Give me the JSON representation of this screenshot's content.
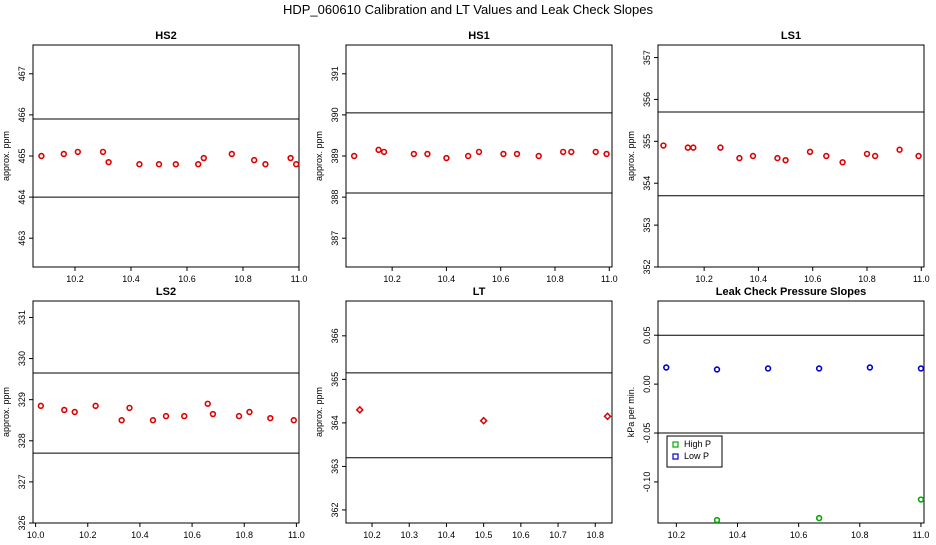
{
  "page_title": "HDP_060610  Calibration and LT Values and Leak Check Slopes",
  "chart_data": [
    {
      "type": "scatter",
      "title": "HS2",
      "ylabel": "approx. ppm",
      "xlim": [
        10.05,
        11.0
      ],
      "ylim": [
        462.3,
        467.7
      ],
      "xticks": [
        "10.2",
        "10.4",
        "10.6",
        "10.8",
        "11.0"
      ],
      "yticks": [
        "463",
        "464",
        "465",
        "466",
        "467"
      ],
      "hlines": [
        465.9,
        464.0
      ],
      "marker": "circle",
      "series": [
        {
          "color": "#dd0000",
          "x": [
            10.08,
            10.16,
            10.21,
            10.3,
            10.32,
            10.43,
            10.5,
            10.56,
            10.64,
            10.66,
            10.76,
            10.84,
            10.88,
            10.97,
            10.99
          ],
          "y": [
            465.0,
            465.05,
            465.1,
            465.1,
            464.85,
            464.8,
            464.8,
            464.8,
            464.8,
            464.95,
            465.05,
            464.9,
            464.8,
            464.95,
            464.8
          ]
        }
      ]
    },
    {
      "type": "scatter",
      "title": "HS1",
      "ylabel": "approx. ppm",
      "xlim": [
        10.03,
        11.01
      ],
      "ylim": [
        386.3,
        391.7
      ],
      "xticks": [
        "10.2",
        "10.4",
        "10.6",
        "10.8",
        "11.0"
      ],
      "yticks": [
        "387",
        "388",
        "389",
        "390",
        "391"
      ],
      "hlines": [
        390.05,
        388.1
      ],
      "marker": "circle",
      "series": [
        {
          "color": "#dd0000",
          "x": [
            10.06,
            10.15,
            10.17,
            10.28,
            10.33,
            10.4,
            10.48,
            10.52,
            10.61,
            10.66,
            10.74,
            10.83,
            10.86,
            10.95,
            10.99
          ],
          "y": [
            389.0,
            389.15,
            389.1,
            389.05,
            389.05,
            388.95,
            389.0,
            389.1,
            389.05,
            389.05,
            389.0,
            389.1,
            389.1,
            389.1,
            389.05
          ]
        }
      ]
    },
    {
      "type": "scatter",
      "title": "LS1",
      "ylabel": "approx. ppm",
      "xlim": [
        10.03,
        11.01
      ],
      "ylim": [
        352.0,
        357.3
      ],
      "xticks": [
        "10.2",
        "10.4",
        "10.6",
        "10.8",
        "11.0"
      ],
      "yticks": [
        "352",
        "353",
        "354",
        "355",
        "356",
        "357"
      ],
      "hlines": [
        355.7,
        353.7
      ],
      "marker": "circle",
      "series": [
        {
          "color": "#dd0000",
          "x": [
            10.05,
            10.14,
            10.16,
            10.26,
            10.33,
            10.38,
            10.47,
            10.5,
            10.59,
            10.65,
            10.71,
            10.8,
            10.83,
            10.92,
            10.99
          ],
          "y": [
            354.9,
            354.85,
            354.85,
            354.85,
            354.6,
            354.65,
            354.6,
            354.55,
            354.75,
            354.65,
            354.5,
            354.7,
            354.65,
            354.8,
            354.65
          ]
        }
      ]
    },
    {
      "type": "scatter",
      "title": "LS2",
      "ylabel": "approx. ppm",
      "xlim": [
        9.99,
        11.01
      ],
      "ylim": [
        326.0,
        331.4
      ],
      "xticks": [
        "10.0",
        "10.2",
        "10.4",
        "10.6",
        "10.8",
        "11.0"
      ],
      "yticks": [
        "326",
        "327",
        "328",
        "329",
        "330",
        "331"
      ],
      "hlines": [
        329.65,
        327.7
      ],
      "marker": "circle",
      "series": [
        {
          "color": "#dd0000",
          "x": [
            10.02,
            10.11,
            10.15,
            10.23,
            10.33,
            10.36,
            10.45,
            10.5,
            10.57,
            10.66,
            10.68,
            10.78,
            10.82,
            10.9,
            10.99
          ],
          "y": [
            328.85,
            328.75,
            328.7,
            328.85,
            328.5,
            328.8,
            328.5,
            328.6,
            328.6,
            328.9,
            328.65,
            328.6,
            328.7,
            328.55,
            328.5
          ]
        }
      ]
    },
    {
      "type": "scatter",
      "title": "LT",
      "ylabel": "approx. ppm",
      "xlim": [
        10.13,
        10.845
      ],
      "ylim": [
        361.7,
        366.8
      ],
      "xticks": [
        "10.2",
        "10.3",
        "10.4",
        "10.5",
        "10.6",
        "10.7",
        "10.8"
      ],
      "yticks": [
        "362",
        "363",
        "364",
        "365",
        "366"
      ],
      "hlines": [
        365.15,
        363.2
      ],
      "marker": "diamond",
      "series": [
        {
          "color": "#dd0000",
          "x": [
            10.167,
            10.5,
            10.833
          ],
          "y": [
            364.3,
            364.05,
            364.15
          ]
        }
      ]
    },
    {
      "type": "scatter",
      "title": "Leak Check Pressure Slopes",
      "ylabel": "kPa per min.",
      "xlim": [
        10.14,
        11.01
      ],
      "ylim": [
        -0.142,
        0.085
      ],
      "xticks": [
        "10.2",
        "10.4",
        "10.6",
        "10.8",
        "11.0"
      ],
      "yticks": [
        "-0.10",
        "-0.05",
        "0.00",
        "0.05"
      ],
      "hlines": [
        0.05,
        -0.05
      ],
      "marker": "circle",
      "legend": {
        "position": "center-left",
        "entries": [
          "High P",
          "Low P"
        ]
      },
      "series": [
        {
          "name": "High P",
          "color": "#00aa00",
          "x": [
            10.333,
            10.667,
            11.0
          ],
          "y": [
            -0.139,
            -0.137,
            -0.118
          ]
        },
        {
          "name": "Low P",
          "color": "#0000cc",
          "x": [
            10.167,
            10.333,
            10.5,
            10.667,
            10.833,
            11.0
          ],
          "y": [
            0.017,
            0.015,
            0.016,
            0.016,
            0.017,
            0.016
          ]
        }
      ]
    }
  ]
}
